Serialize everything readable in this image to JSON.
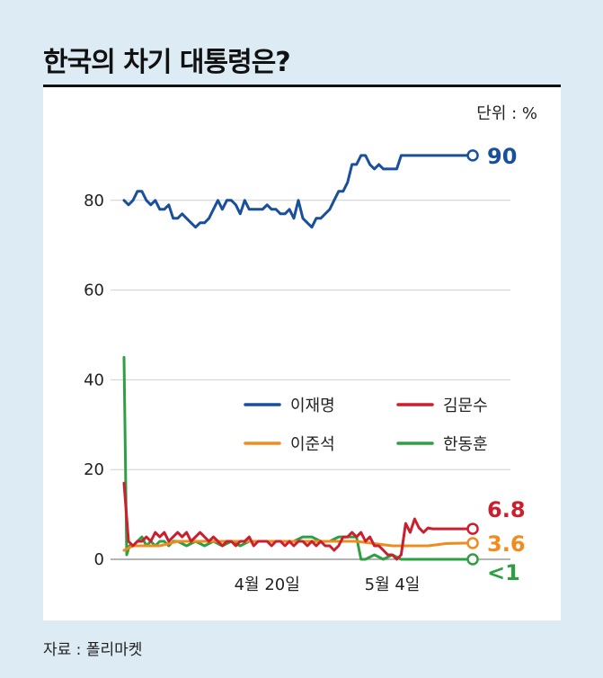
{
  "title": "한국의 차기 대통령은?",
  "unit_label": "단위 : %",
  "source": "자료 : 폴리마켓",
  "chart_data": {
    "type": "line",
    "title": "한국의 차기 대통령은?",
    "ylim": [
      0,
      100
    ],
    "yticks": [
      0,
      20,
      40,
      60,
      80
    ],
    "xtick_labels": [
      {
        "label": "4월 20일",
        "x": 20
      },
      {
        "label": "5월 4일",
        "x": 34
      }
    ],
    "xlim": [
      4,
      44
    ],
    "grid": true,
    "legend": "center-right",
    "series": [
      {
        "name": "이재명",
        "color": "#1a4f9c",
        "end_label": "90",
        "x": [
          4,
          4.5,
          5,
          5.5,
          6,
          6.5,
          7,
          7.5,
          8,
          8.5,
          9,
          9.5,
          10,
          10.5,
          11,
          11.5,
          12,
          12.5,
          13,
          13.5,
          14,
          14.5,
          15,
          15.5,
          16,
          16.5,
          17,
          17.5,
          18,
          18.5,
          19,
          19.5,
          20,
          20.5,
          21,
          21.5,
          22,
          22.5,
          23,
          23.5,
          24,
          24.5,
          25,
          25.5,
          26,
          26.5,
          27,
          27.5,
          28,
          28.5,
          29,
          29.5,
          30,
          30.5,
          31,
          31.5,
          32,
          32.5,
          33,
          33.5,
          34,
          34.5,
          35,
          35.5,
          36,
          36.5,
          37,
          37.5,
          38,
          38.5,
          39,
          39.5,
          40,
          40.5,
          41,
          41.5,
          42,
          42.5,
          43
        ],
        "values": [
          80,
          79,
          80,
          82,
          82,
          80,
          79,
          80,
          78,
          78,
          79,
          76,
          76,
          77,
          76,
          75,
          74,
          75,
          75,
          76,
          78,
          80,
          78,
          80,
          80,
          79,
          77,
          80,
          78,
          78,
          78,
          78,
          79,
          78,
          78,
          77,
          77,
          78,
          76,
          80,
          76,
          75,
          74,
          76,
          76,
          77,
          78,
          80,
          82,
          82,
          84,
          88,
          88,
          90,
          90,
          88,
          87,
          88,
          87,
          87,
          87,
          87,
          90,
          90,
          90,
          90,
          90,
          90,
          90,
          90,
          90,
          90,
          90,
          90,
          90,
          90,
          90,
          90,
          90
        ]
      },
      {
        "name": "김문수",
        "color": "#cc1f2e",
        "end_label": "6.8",
        "x": [
          4,
          4.5,
          5,
          5.5,
          6,
          6.5,
          7,
          7.5,
          8,
          8.5,
          9,
          9.5,
          10,
          10.5,
          11,
          11.5,
          12,
          12.5,
          13,
          13.5,
          14,
          14.5,
          15,
          15.5,
          16,
          16.5,
          17,
          17.5,
          18,
          18.5,
          19,
          19.5,
          20,
          20.5,
          21,
          21.5,
          22,
          22.5,
          23,
          23.5,
          24,
          24.5,
          25,
          25.5,
          26,
          26.5,
          27,
          27.5,
          28,
          28.5,
          29,
          29.5,
          30,
          30.5,
          31,
          31.5,
          32,
          32.5,
          33,
          33.5,
          34,
          34.5,
          35,
          35.5,
          36,
          36.5,
          37,
          37.5,
          38,
          38.5,
          39,
          39.5,
          40,
          40.5,
          41,
          41.5,
          42,
          42.5,
          43
        ],
        "values": [
          17,
          4,
          3,
          4,
          4,
          5,
          4,
          6,
          5,
          6,
          4,
          5,
          6,
          5,
          6,
          4,
          5,
          6,
          5,
          4,
          5,
          4,
          3,
          4,
          4,
          3,
          4,
          4,
          5,
          3,
          4,
          4,
          4,
          3,
          4,
          4,
          3,
          4,
          3,
          4,
          4,
          3,
          4,
          3,
          4,
          3,
          3,
          2,
          3,
          5,
          5,
          6,
          5,
          6,
          4,
          5,
          3,
          3,
          2,
          1,
          1,
          0,
          1,
          8,
          6,
          9,
          7,
          6,
          7,
          6.8,
          6.8,
          6.8,
          6.8,
          6.8,
          6.8,
          6.8,
          6.8,
          6.8,
          6.8
        ]
      },
      {
        "name": "이준석",
        "color": "#f08c1e",
        "end_label": "3.6",
        "x": [
          4,
          5,
          6,
          8,
          10,
          12,
          14,
          16,
          18,
          20,
          22,
          24,
          26,
          28,
          30,
          32,
          34,
          36,
          38,
          40,
          42,
          43
        ],
        "values": [
          2,
          3,
          3,
          3,
          4,
          4,
          4,
          4,
          4,
          4,
          4,
          4,
          4,
          4,
          4,
          3.5,
          3,
          3,
          3,
          3.5,
          3.6,
          3.6
        ]
      },
      {
        "name": "한동훈",
        "color": "#2ea043",
        "end_label": "<1",
        "x": [
          4,
          4.3,
          4.6,
          5,
          5.5,
          6,
          6.5,
          7,
          7.5,
          8,
          8.5,
          9,
          9.5,
          10,
          11,
          12,
          13,
          14,
          15,
          16,
          17,
          18,
          19,
          20,
          21,
          22,
          23,
          24,
          25,
          26,
          27,
          28,
          29,
          30,
          30.5,
          31,
          32,
          33,
          34,
          35,
          36,
          37,
          38,
          39,
          40,
          41,
          42,
          43
        ],
        "values": [
          45,
          1,
          3,
          3,
          4,
          5,
          3,
          4,
          3,
          4,
          4,
          3,
          4,
          4,
          3,
          4,
          3,
          4,
          3,
          4,
          3,
          4,
          4,
          4,
          4,
          4,
          4,
          5,
          5,
          4,
          4,
          5,
          5,
          5,
          0,
          0,
          1,
          0,
          1,
          0,
          0,
          0,
          0,
          0,
          0,
          0,
          0,
          0
        ]
      }
    ]
  }
}
